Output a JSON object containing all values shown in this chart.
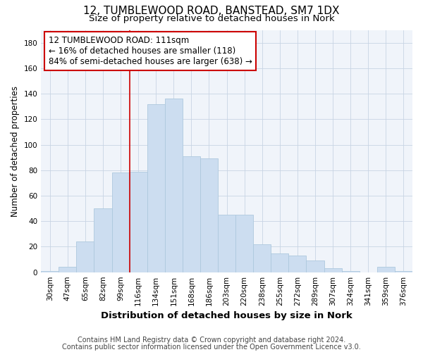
{
  "title": "12, TUMBLEWOOD ROAD, BANSTEAD, SM7 1DX",
  "subtitle": "Size of property relative to detached houses in Nork",
  "xlabel": "Distribution of detached houses by size in Nork",
  "ylabel": "Number of detached properties",
  "categories": [
    "30sqm",
    "47sqm",
    "65sqm",
    "82sqm",
    "99sqm",
    "116sqm",
    "134sqm",
    "151sqm",
    "168sqm",
    "186sqm",
    "203sqm",
    "220sqm",
    "238sqm",
    "255sqm",
    "272sqm",
    "289sqm",
    "307sqm",
    "324sqm",
    "341sqm",
    "359sqm",
    "376sqm"
  ],
  "values": [
    1,
    4,
    24,
    50,
    78,
    79,
    132,
    136,
    91,
    89,
    45,
    45,
    22,
    15,
    13,
    9,
    3,
    1,
    0,
    4,
    1
  ],
  "bar_color": "#ccddf0",
  "bar_edge_color": "#aec8de",
  "vline_x_index": 5,
  "vline_color": "#cc0000",
  "annotation_text": "12 TUMBLEWOOD ROAD: 111sqm\n← 16% of detached houses are smaller (118)\n84% of semi-detached houses are larger (638) →",
  "annotation_box_color": "#ffffff",
  "annotation_box_edge": "#cc0000",
  "ylim": [
    0,
    190
  ],
  "yticks": [
    0,
    20,
    40,
    60,
    80,
    100,
    120,
    140,
    160,
    180
  ],
  "footer1": "Contains HM Land Registry data © Crown copyright and database right 2024.",
  "footer2": "Contains public sector information licensed under the Open Government Licence v3.0.",
  "title_fontsize": 11,
  "subtitle_fontsize": 9.5,
  "xlabel_fontsize": 9.5,
  "ylabel_fontsize": 8.5,
  "tick_fontsize": 7.5,
  "annotation_fontsize": 8.5,
  "footer_fontsize": 7
}
